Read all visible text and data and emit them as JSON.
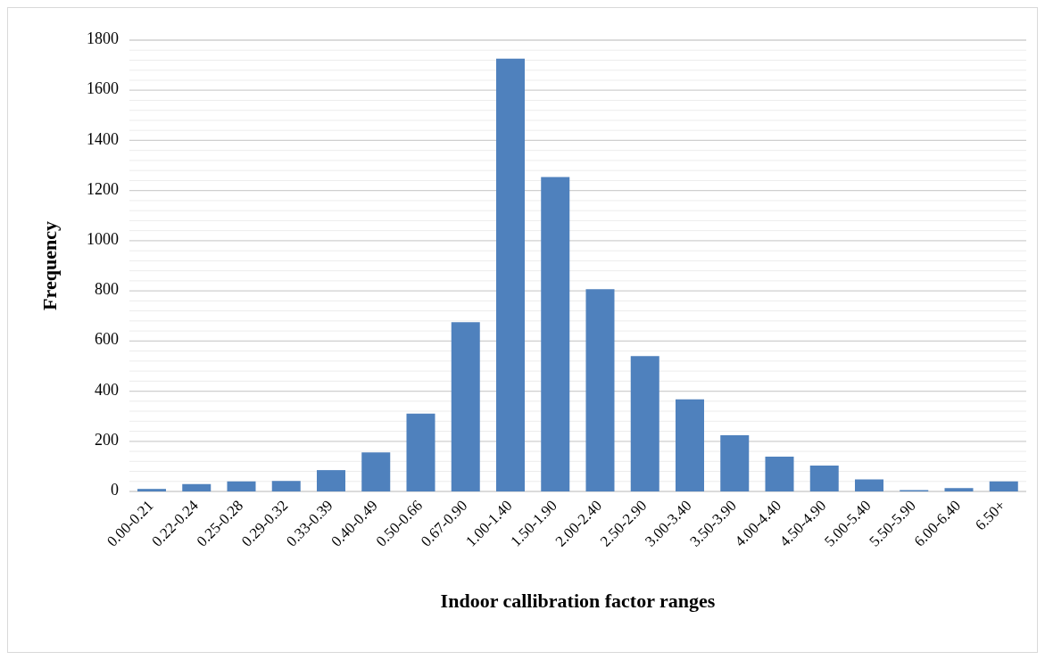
{
  "chart_data": {
    "type": "bar",
    "xlabel": "Indoor callibration factor ranges",
    "ylabel": "Frequency",
    "categories": [
      "0.00-0.21",
      "0.22-0.24",
      "0.25-0.28",
      "0.29-0.32",
      "0.33-0.39",
      "0.40-0.49",
      "0.50-0.66",
      "0.67-0.90",
      "1.00-1.40",
      "1.50-1.90",
      "2.00-2.40",
      "2.50-2.90",
      "3.00-3.40",
      "3.50-3.90",
      "4.00-4.40",
      "4.50-4.90",
      "5.00-5.40",
      "5.50-5.90",
      "6.00-6.40",
      "6.50+"
    ],
    "values": [
      10,
      29,
      40,
      42,
      85,
      156,
      310,
      675,
      1726,
      1254,
      807,
      540,
      367,
      224,
      139,
      103,
      48,
      5,
      13,
      40
    ],
    "color": "#4f81bd",
    "ylim": [
      0,
      1800
    ],
    "yticks": [
      0,
      {
        "value": 40,
        "label": null
      },
      {
        "value": 80,
        "label": null
      },
      {
        "value": 120,
        "label": null
      },
      {
        "value": 160,
        "label": null
      },
      200,
      {
        "value": 240,
        "label": null
      },
      {
        "value": 280,
        "label": null
      },
      {
        "value": 320,
        "label": null
      },
      {
        "value": 360,
        "label": null
      },
      400,
      {
        "value": 440,
        "label": null
      },
      {
        "value": 480,
        "label": null
      },
      {
        "value": 520,
        "label": null
      },
      {
        "value": 560,
        "label": null
      },
      600,
      {
        "value": 640,
        "label": null
      },
      {
        "value": 680,
        "label": null
      },
      {
        "value": 720,
        "label": null
      },
      {
        "value": 760,
        "label": null
      },
      800,
      {
        "value": 840,
        "label": null
      },
      {
        "value": 880,
        "label": null
      },
      {
        "value": 920,
        "label": null
      },
      {
        "value": 960,
        "label": null
      },
      1000,
      {
        "value": 1040,
        "label": null
      },
      {
        "value": 1080,
        "label": null
      },
      {
        "value": 1120,
        "label": null
      },
      {
        "value": 1160,
        "label": null
      },
      1200,
      {
        "value": 1240,
        "label": null
      },
      {
        "value": 1280,
        "label": null
      },
      {
        "value": 1320,
        "label": null
      },
      {
        "value": 1360,
        "label": null
      },
      1400,
      {
        "value": 1440,
        "label": null
      },
      {
        "value": 1480,
        "label": null
      },
      {
        "value": 1520,
        "label": null
      },
      {
        "value": 1560,
        "label": null
      },
      1600,
      {
        "value": 1640,
        "label": null
      },
      {
        "value": 1680,
        "label": null
      },
      {
        "value": 1720,
        "label": null
      },
      {
        "value": 1760,
        "label": null
      },
      1800
    ],
    "grid": "y",
    "legend": false
  }
}
